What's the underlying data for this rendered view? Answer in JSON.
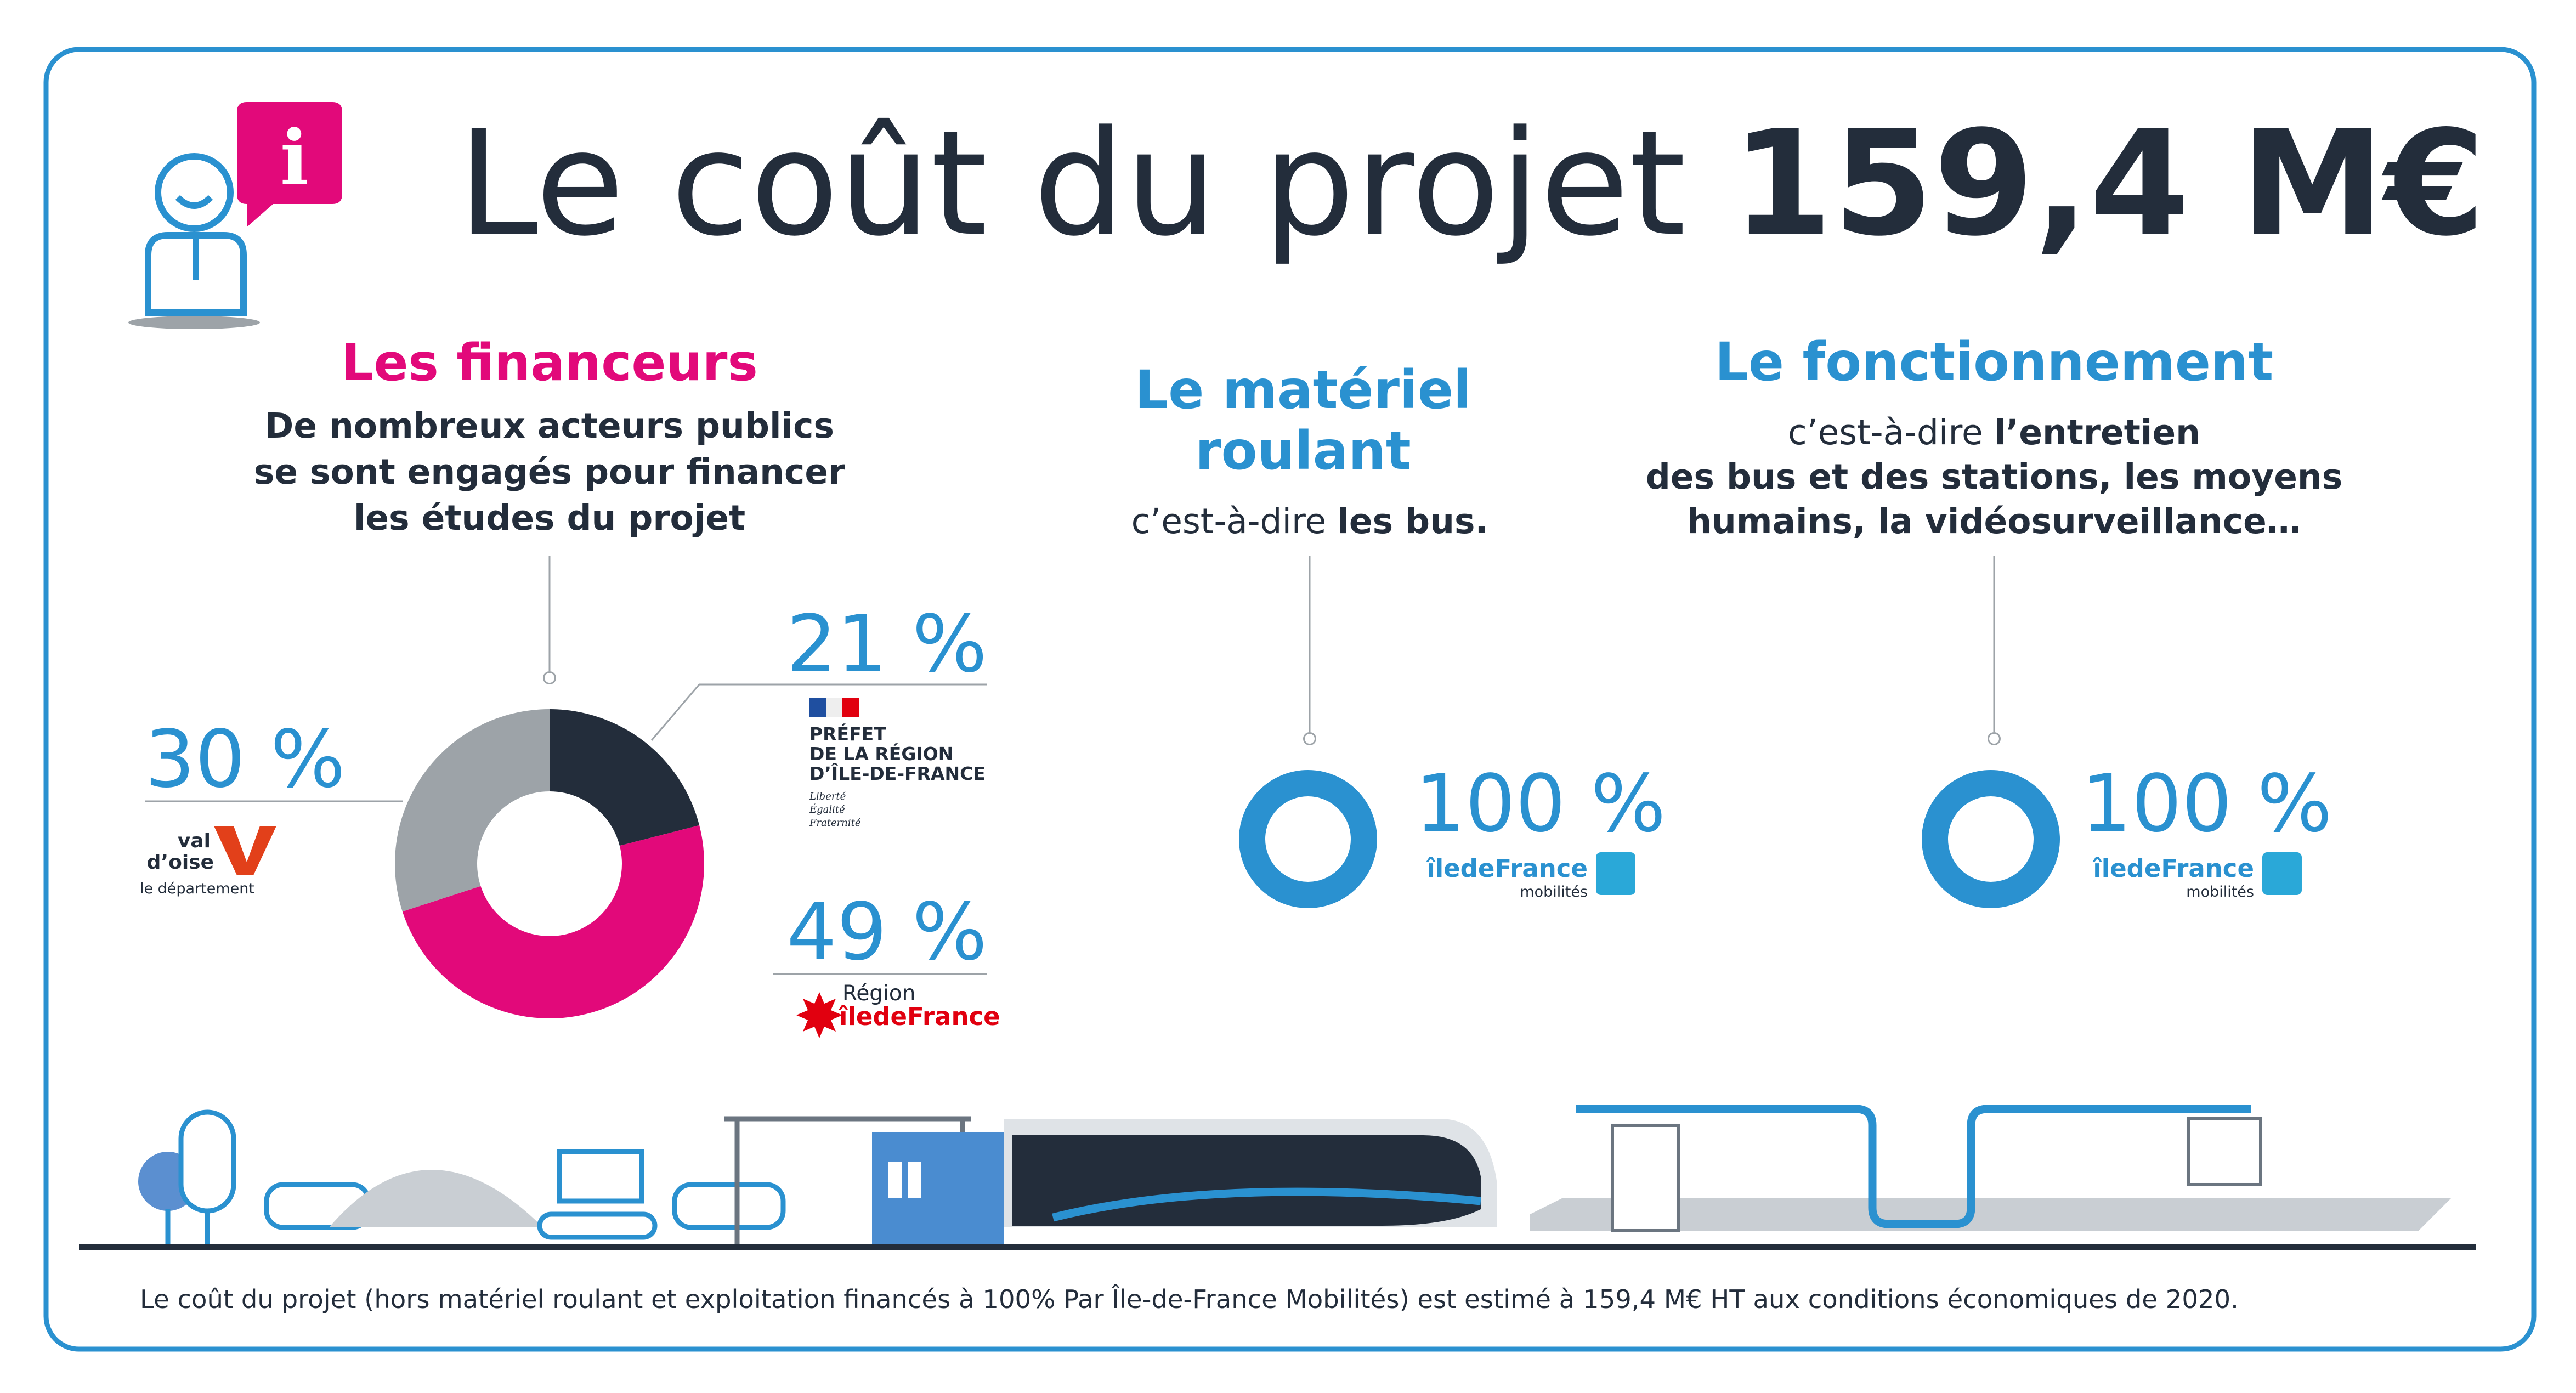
{
  "header": {
    "title": "Le coût du projet",
    "amount": "159,4 M€"
  },
  "financeurs": {
    "title": "Les financeurs",
    "lines": [
      "De nombreux acteurs publics",
      "se sont engagés pour financer",
      "les études du projet"
    ]
  },
  "chart_data": {
    "type": "pie",
    "donut": true,
    "values": [
      21,
      49,
      30
    ],
    "value_labels": [
      "21 %",
      "49 %",
      "30 %"
    ],
    "colors": [
      "#232d3b",
      "#e2097a",
      "#9da3a8"
    ]
  },
  "logos": {
    "prefet": [
      "PRÉFET",
      "DE LA RÉGION",
      "D’ÎLE-DE-FRANCE"
    ],
    "prefet_motto": [
      "Liberté",
      "Égalité",
      "Fraternité"
    ],
    "region": [
      "Région",
      "îledeFrance"
    ],
    "valdoise": [
      "val",
      "d’oise",
      "le département"
    ]
  },
  "materiel": {
    "title": [
      "Le matériel",
      "roulant"
    ],
    "desc": "c’est-à-dire",
    "desc_bold": "les bus.",
    "value": 100,
    "value_label": "100 %",
    "logo": [
      "îledeFrance",
      "mobilités"
    ]
  },
  "fonctionnement": {
    "title": "Le fonctionnement",
    "desc": "c’est-à-dire",
    "desc_bold": [
      "l’entretien",
      "des bus et des stations, les moyens",
      "humains, la vidéosurveillance…"
    ],
    "value": 100,
    "value_label": "100 %",
    "logo": [
      "îledeFrance",
      "mobilités"
    ]
  },
  "footer": "Le coût du projet (hors matériel roulant et exploitation financés à 100% Par Île-de-France Mobilités) est estimé à 159,4 M€ HT aux conditions économiques de 2020."
}
